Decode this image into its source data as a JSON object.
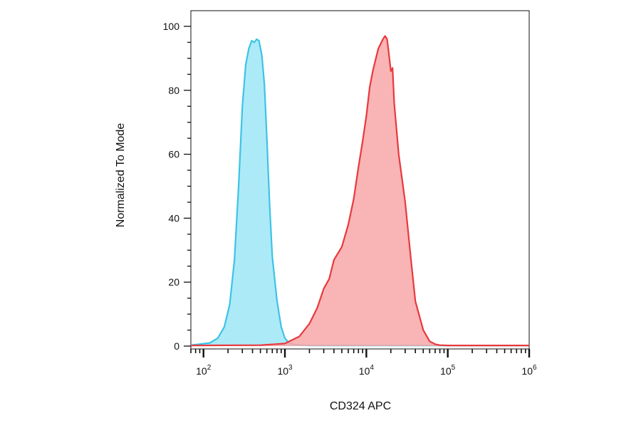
{
  "chart_data": {
    "type": "area",
    "title": "",
    "xlabel": "CD324 APC",
    "ylabel": "Normalized To Mode",
    "x_scale": "log",
    "xlim": [
      70,
      1000000
    ],
    "ylim": [
      0,
      105
    ],
    "x_ticks": [
      {
        "base": "10",
        "exp": "2",
        "value": 100
      },
      {
        "base": "10",
        "exp": "3",
        "value": 1000
      },
      {
        "base": "10",
        "exp": "4",
        "value": 10000
      },
      {
        "base": "10",
        "exp": "5",
        "value": 100000
      },
      {
        "base": "10",
        "exp": "6",
        "value": 1000000
      }
    ],
    "y_ticks": [
      {
        "label": "0",
        "value": 0
      },
      {
        "label": "20",
        "value": 20
      },
      {
        "label": "40",
        "value": 40
      },
      {
        "label": "60",
        "value": 60
      },
      {
        "label": "80",
        "value": 80
      },
      {
        "label": "100",
        "value": 100
      }
    ],
    "grid": false,
    "legend": "none",
    "series": [
      {
        "color": "#3cc3e6",
        "fill": "#9fe6f6",
        "x": [
          70,
          120,
          150,
          180,
          210,
          240,
          270,
          300,
          330,
          360,
          390,
          420,
          450,
          480,
          520,
          560,
          600,
          650,
          700,
          800,
          900,
          1000,
          1100,
          1300,
          1600,
          2000,
          5000,
          20000,
          100000,
          1000000
        ],
        "y": [
          0.3,
          1,
          2.5,
          6,
          13,
          27,
          50,
          75,
          88,
          93,
          95.5,
          95,
          96,
          95.5,
          91,
          82,
          65,
          44,
          28,
          14,
          6,
          2.5,
          1.2,
          0.5,
          0.3,
          0.2,
          0.2,
          0.2,
          0.2,
          0.2
        ]
      },
      {
        "color": "#e8393d",
        "fill": "#f8a7a8",
        "x": [
          70,
          500,
          1000,
          1500,
          2000,
          2500,
          3000,
          3500,
          4000,
          5000,
          6000,
          7000,
          8000,
          9000,
          10000,
          11000,
          12000,
          14000,
          16000,
          17000,
          18000,
          19000,
          20000,
          21000,
          22000,
          25000,
          30000,
          35000,
          40000,
          50000,
          60000,
          70000,
          80000,
          100000,
          1000000
        ],
        "y": [
          0.2,
          0.3,
          0.8,
          3,
          7,
          12,
          18,
          21,
          27,
          31,
          38,
          46,
          56,
          64,
          72,
          81,
          86,
          93,
          96,
          97,
          96,
          91,
          86,
          87,
          76,
          60,
          45,
          28,
          14,
          5,
          1.5,
          0.6,
          0.3,
          0.2,
          0.2
        ]
      }
    ]
  }
}
